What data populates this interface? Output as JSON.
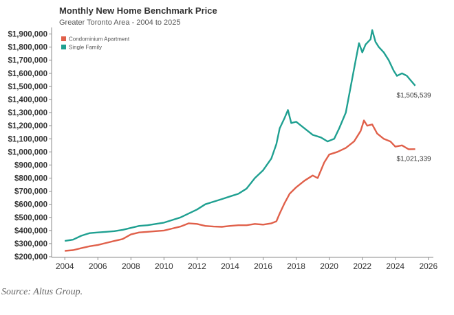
{
  "source_note": "Source: Altus Group.",
  "colors": {
    "condo": "#e0604a",
    "single": "#1fa091",
    "axis": "#888888",
    "tick_text": "#333333"
  },
  "chart_data": {
    "type": "line",
    "title": "Monthly New Home Benchmark Price",
    "subtitle": "Greater Toronto Area - 2004 to 2025",
    "xlabel": "",
    "ylabel": "",
    "xlim": [
      2003.2,
      2026.3
    ],
    "ylim": [
      195000,
      1950000
    ],
    "x_ticks": [
      2004,
      2006,
      2008,
      2010,
      2012,
      2014,
      2016,
      2018,
      2020,
      2022,
      2024,
      2026
    ],
    "y_ticks": [
      200000,
      300000,
      400000,
      500000,
      600000,
      700000,
      800000,
      900000,
      1000000,
      1100000,
      1200000,
      1300000,
      1400000,
      1500000,
      1600000,
      1700000,
      1800000,
      1900000
    ],
    "y_tick_labels": [
      "$200,000",
      "$300,000",
      "$400,000",
      "$500,000",
      "$600,000",
      "$700,000",
      "$800,000",
      "$900,000",
      "$1,000,000",
      "$1,100,000",
      "$1,200,000",
      "$1,300,000",
      "$1,400,000",
      "$1,500,000",
      "$1,600,000",
      "$1,700,000",
      "$1,800,000",
      "$1,900,000"
    ],
    "legend_position": "top-left",
    "grid": false,
    "series": [
      {
        "name": "Condominium Apartment",
        "color_key": "condo",
        "end_label": "$1,021,339",
        "points": [
          [
            2004.0,
            245000
          ],
          [
            2004.5,
            250000
          ],
          [
            2005.0,
            265000
          ],
          [
            2005.5,
            280000
          ],
          [
            2006.0,
            290000
          ],
          [
            2006.5,
            305000
          ],
          [
            2007.0,
            320000
          ],
          [
            2007.5,
            335000
          ],
          [
            2008.0,
            370000
          ],
          [
            2008.5,
            385000
          ],
          [
            2009.0,
            390000
          ],
          [
            2009.5,
            395000
          ],
          [
            2010.0,
            400000
          ],
          [
            2010.5,
            415000
          ],
          [
            2011.0,
            430000
          ],
          [
            2011.5,
            455000
          ],
          [
            2012.0,
            450000
          ],
          [
            2012.5,
            435000
          ],
          [
            2013.0,
            430000
          ],
          [
            2013.5,
            428000
          ],
          [
            2014.0,
            435000
          ],
          [
            2014.5,
            440000
          ],
          [
            2015.0,
            440000
          ],
          [
            2015.5,
            450000
          ],
          [
            2016.0,
            445000
          ],
          [
            2016.5,
            455000
          ],
          [
            2016.8,
            470000
          ],
          [
            2017.0,
            530000
          ],
          [
            2017.3,
            610000
          ],
          [
            2017.6,
            680000
          ],
          [
            2018.0,
            730000
          ],
          [
            2018.5,
            780000
          ],
          [
            2019.0,
            820000
          ],
          [
            2019.3,
            800000
          ],
          [
            2019.5,
            860000
          ],
          [
            2019.7,
            920000
          ],
          [
            2020.0,
            980000
          ],
          [
            2020.5,
            1000000
          ],
          [
            2021.0,
            1030000
          ],
          [
            2021.5,
            1080000
          ],
          [
            2021.9,
            1160000
          ],
          [
            2022.1,
            1240000
          ],
          [
            2022.3,
            1200000
          ],
          [
            2022.6,
            1210000
          ],
          [
            2022.9,
            1140000
          ],
          [
            2023.3,
            1100000
          ],
          [
            2023.7,
            1080000
          ],
          [
            2024.0,
            1040000
          ],
          [
            2024.4,
            1050000
          ],
          [
            2024.8,
            1020000
          ],
          [
            2025.2,
            1021339
          ]
        ]
      },
      {
        "name": "Single Family",
        "color_key": "single",
        "end_label": "$1,505,539",
        "points": [
          [
            2004.0,
            320000
          ],
          [
            2004.5,
            330000
          ],
          [
            2005.0,
            360000
          ],
          [
            2005.5,
            380000
          ],
          [
            2006.0,
            385000
          ],
          [
            2006.5,
            390000
          ],
          [
            2007.0,
            395000
          ],
          [
            2007.5,
            405000
          ],
          [
            2008.0,
            420000
          ],
          [
            2008.5,
            435000
          ],
          [
            2009.0,
            440000
          ],
          [
            2009.5,
            450000
          ],
          [
            2010.0,
            460000
          ],
          [
            2010.5,
            480000
          ],
          [
            2011.0,
            500000
          ],
          [
            2011.5,
            530000
          ],
          [
            2012.0,
            560000
          ],
          [
            2012.5,
            600000
          ],
          [
            2013.0,
            620000
          ],
          [
            2013.5,
            640000
          ],
          [
            2014.0,
            660000
          ],
          [
            2014.5,
            680000
          ],
          [
            2015.0,
            720000
          ],
          [
            2015.5,
            800000
          ],
          [
            2016.0,
            860000
          ],
          [
            2016.5,
            950000
          ],
          [
            2016.8,
            1060000
          ],
          [
            2017.0,
            1180000
          ],
          [
            2017.3,
            1260000
          ],
          [
            2017.5,
            1320000
          ],
          [
            2017.7,
            1220000
          ],
          [
            2018.0,
            1230000
          ],
          [
            2018.3,
            1200000
          ],
          [
            2018.7,
            1160000
          ],
          [
            2019.0,
            1130000
          ],
          [
            2019.5,
            1110000
          ],
          [
            2019.9,
            1080000
          ],
          [
            2020.3,
            1100000
          ],
          [
            2020.6,
            1180000
          ],
          [
            2021.0,
            1300000
          ],
          [
            2021.3,
            1500000
          ],
          [
            2021.6,
            1700000
          ],
          [
            2021.8,
            1830000
          ],
          [
            2022.0,
            1760000
          ],
          [
            2022.2,
            1820000
          ],
          [
            2022.5,
            1860000
          ],
          [
            2022.6,
            1930000
          ],
          [
            2022.8,
            1840000
          ],
          [
            2023.0,
            1800000
          ],
          [
            2023.3,
            1760000
          ],
          [
            2023.6,
            1700000
          ],
          [
            2023.9,
            1620000
          ],
          [
            2024.1,
            1580000
          ],
          [
            2024.4,
            1600000
          ],
          [
            2024.7,
            1580000
          ],
          [
            2024.9,
            1550000
          ],
          [
            2025.2,
            1505539
          ]
        ]
      }
    ]
  }
}
